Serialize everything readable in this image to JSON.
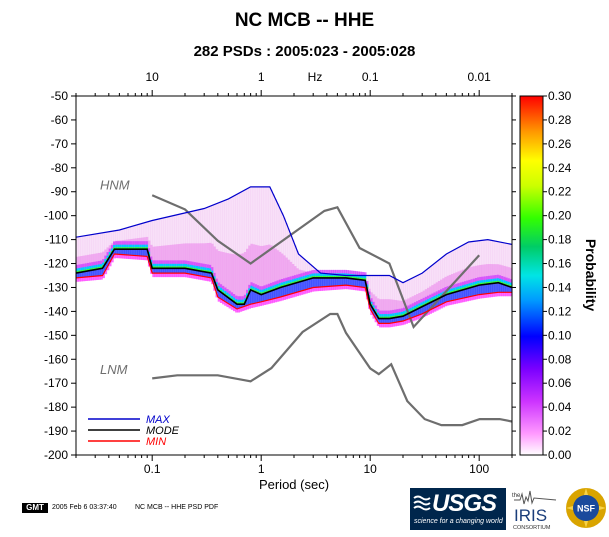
{
  "title": "NC MCB -- HHE",
  "subtitle": "282 PSDs : 2005:023 - 2005:028",
  "footer": {
    "gmt_label": "GMT",
    "timestamp": "2005 Feb  6 03:37:40",
    "file_label": "NC MCB -- HHE PSD PDF"
  },
  "logos": {
    "usgs_text": "USGS",
    "usgs_tagline": "science for a changing world",
    "iris_prefix": "the",
    "iris_text": "IRIS",
    "iris_sub": "CONSORTIUM",
    "nsf_text": "NSF"
  },
  "colors": {
    "max": "#0000cc",
    "mode": "#000000",
    "min": "#ff0000",
    "noise_model": "#6e6e6e"
  },
  "chart_data": {
    "type": "line",
    "xlabel": "Period (sec)",
    "top_axis_label": "Hz",
    "colorbar_label": "Probability",
    "x_scale": "log",
    "xlim": [
      0.02,
      200
    ],
    "ylim": [
      -200,
      -50
    ],
    "bottom_ticks": [
      "0.1",
      "1",
      "10",
      "100"
    ],
    "bottom_tick_values": [
      0.1,
      1,
      10,
      100
    ],
    "top_ticks": [
      "10",
      "1",
      "0.1",
      "0.01"
    ],
    "top_tick_values": [
      0.1,
      1,
      10,
      100
    ],
    "y_ticks": [
      "-50",
      "-60",
      "-70",
      "-80",
      "-90",
      "-100",
      "-110",
      "-120",
      "-130",
      "-140",
      "-150",
      "-160",
      "-170",
      "-180",
      "-190",
      "-200"
    ],
    "y_tick_values": [
      -50,
      -60,
      -70,
      -80,
      -90,
      -100,
      -110,
      -120,
      -130,
      -140,
      -150,
      -160,
      -170,
      -180,
      -190,
      -200
    ],
    "colorbar_ticks": [
      "0.00",
      "0.02",
      "0.04",
      "0.06",
      "0.08",
      "0.10",
      "0.12",
      "0.14",
      "0.16",
      "0.18",
      "0.20",
      "0.22",
      "0.24",
      "0.26",
      "0.28",
      "0.30"
    ],
    "colorbar_range": [
      0,
      0.3
    ],
    "annotations": [
      "HNM",
      "LNM"
    ],
    "legend": [
      "MAX",
      "MODE",
      "MIN"
    ],
    "legend_position": "bottom-left",
    "series": [
      {
        "name": "MAX",
        "points": [
          [
            0.02,
            -109
          ],
          [
            0.05,
            -106
          ],
          [
            0.1,
            -102
          ],
          [
            0.3,
            -97
          ],
          [
            0.5,
            -93
          ],
          [
            0.8,
            -88
          ],
          [
            1.2,
            -88
          ],
          [
            1.6,
            -100
          ],
          [
            2.2,
            -116
          ],
          [
            3.5,
            -124
          ],
          [
            6,
            -125
          ],
          [
            10,
            -125
          ],
          [
            15,
            -125
          ],
          [
            20,
            -128
          ],
          [
            30,
            -124
          ],
          [
            50,
            -116
          ],
          [
            80,
            -111
          ],
          [
            120,
            -110
          ],
          [
            200,
            -112
          ]
        ]
      },
      {
        "name": "MODE",
        "points": [
          [
            0.02,
            -124
          ],
          [
            0.035,
            -122
          ],
          [
            0.045,
            -114
          ],
          [
            0.09,
            -114
          ],
          [
            0.1,
            -122
          ],
          [
            0.2,
            -122
          ],
          [
            0.35,
            -124
          ],
          [
            0.4,
            -131
          ],
          [
            0.6,
            -137
          ],
          [
            0.7,
            -137
          ],
          [
            0.8,
            -131
          ],
          [
            1,
            -133
          ],
          [
            1.5,
            -130
          ],
          [
            3,
            -126
          ],
          [
            6,
            -126
          ],
          [
            9,
            -127
          ],
          [
            10,
            -137
          ],
          [
            12,
            -143
          ],
          [
            15,
            -143
          ],
          [
            20,
            -142
          ],
          [
            30,
            -138
          ],
          [
            50,
            -133
          ],
          [
            100,
            -129
          ],
          [
            150,
            -128
          ],
          [
            200,
            -130
          ]
        ]
      },
      {
        "name": "MIN",
        "points": [
          [
            0.02,
            -126
          ],
          [
            0.035,
            -125
          ],
          [
            0.045,
            -116
          ],
          [
            0.09,
            -117
          ],
          [
            0.1,
            -124
          ],
          [
            0.2,
            -124
          ],
          [
            0.35,
            -126
          ],
          [
            0.4,
            -134
          ],
          [
            0.6,
            -139
          ],
          [
            0.8,
            -137
          ],
          [
            1,
            -136
          ],
          [
            1.5,
            -134
          ],
          [
            3,
            -130
          ],
          [
            6,
            -129
          ],
          [
            9,
            -130
          ],
          [
            10,
            -139
          ],
          [
            12,
            -145
          ],
          [
            15,
            -145
          ],
          [
            20,
            -144
          ],
          [
            30,
            -141
          ],
          [
            50,
            -136
          ],
          [
            100,
            -133
          ],
          [
            150,
            -132
          ],
          [
            200,
            -132
          ]
        ]
      },
      {
        "name": "HNM",
        "points": [
          [
            0.1,
            -91.5
          ],
          [
            0.2,
            -97.4
          ],
          [
            0.4,
            -110.5
          ],
          [
            0.8,
            -120
          ],
          [
            3.8,
            -98
          ],
          [
            5,
            -96.5
          ],
          [
            8,
            -113.5
          ],
          [
            15,
            -120
          ],
          [
            25,
            -146.5
          ],
          [
            100,
            -116.5
          ]
        ]
      },
      {
        "name": "LNM",
        "points": [
          [
            0.1,
            -168
          ],
          [
            0.17,
            -166.7
          ],
          [
            0.4,
            -166.7
          ],
          [
            0.8,
            -169.2
          ],
          [
            1.24,
            -163.7
          ],
          [
            2.4,
            -148.6
          ],
          [
            4.3,
            -141.1
          ],
          [
            5,
            -141.1
          ],
          [
            6,
            -149
          ],
          [
            10,
            -163.8
          ],
          [
            12,
            -166.2
          ],
          [
            15.6,
            -162.1
          ],
          [
            21.9,
            -177.5
          ],
          [
            31.6,
            -185
          ],
          [
            45,
            -187.5
          ],
          [
            70,
            -187.5
          ],
          [
            101,
            -185
          ],
          [
            154,
            -185
          ],
          [
            200,
            -186
          ]
        ]
      }
    ]
  }
}
